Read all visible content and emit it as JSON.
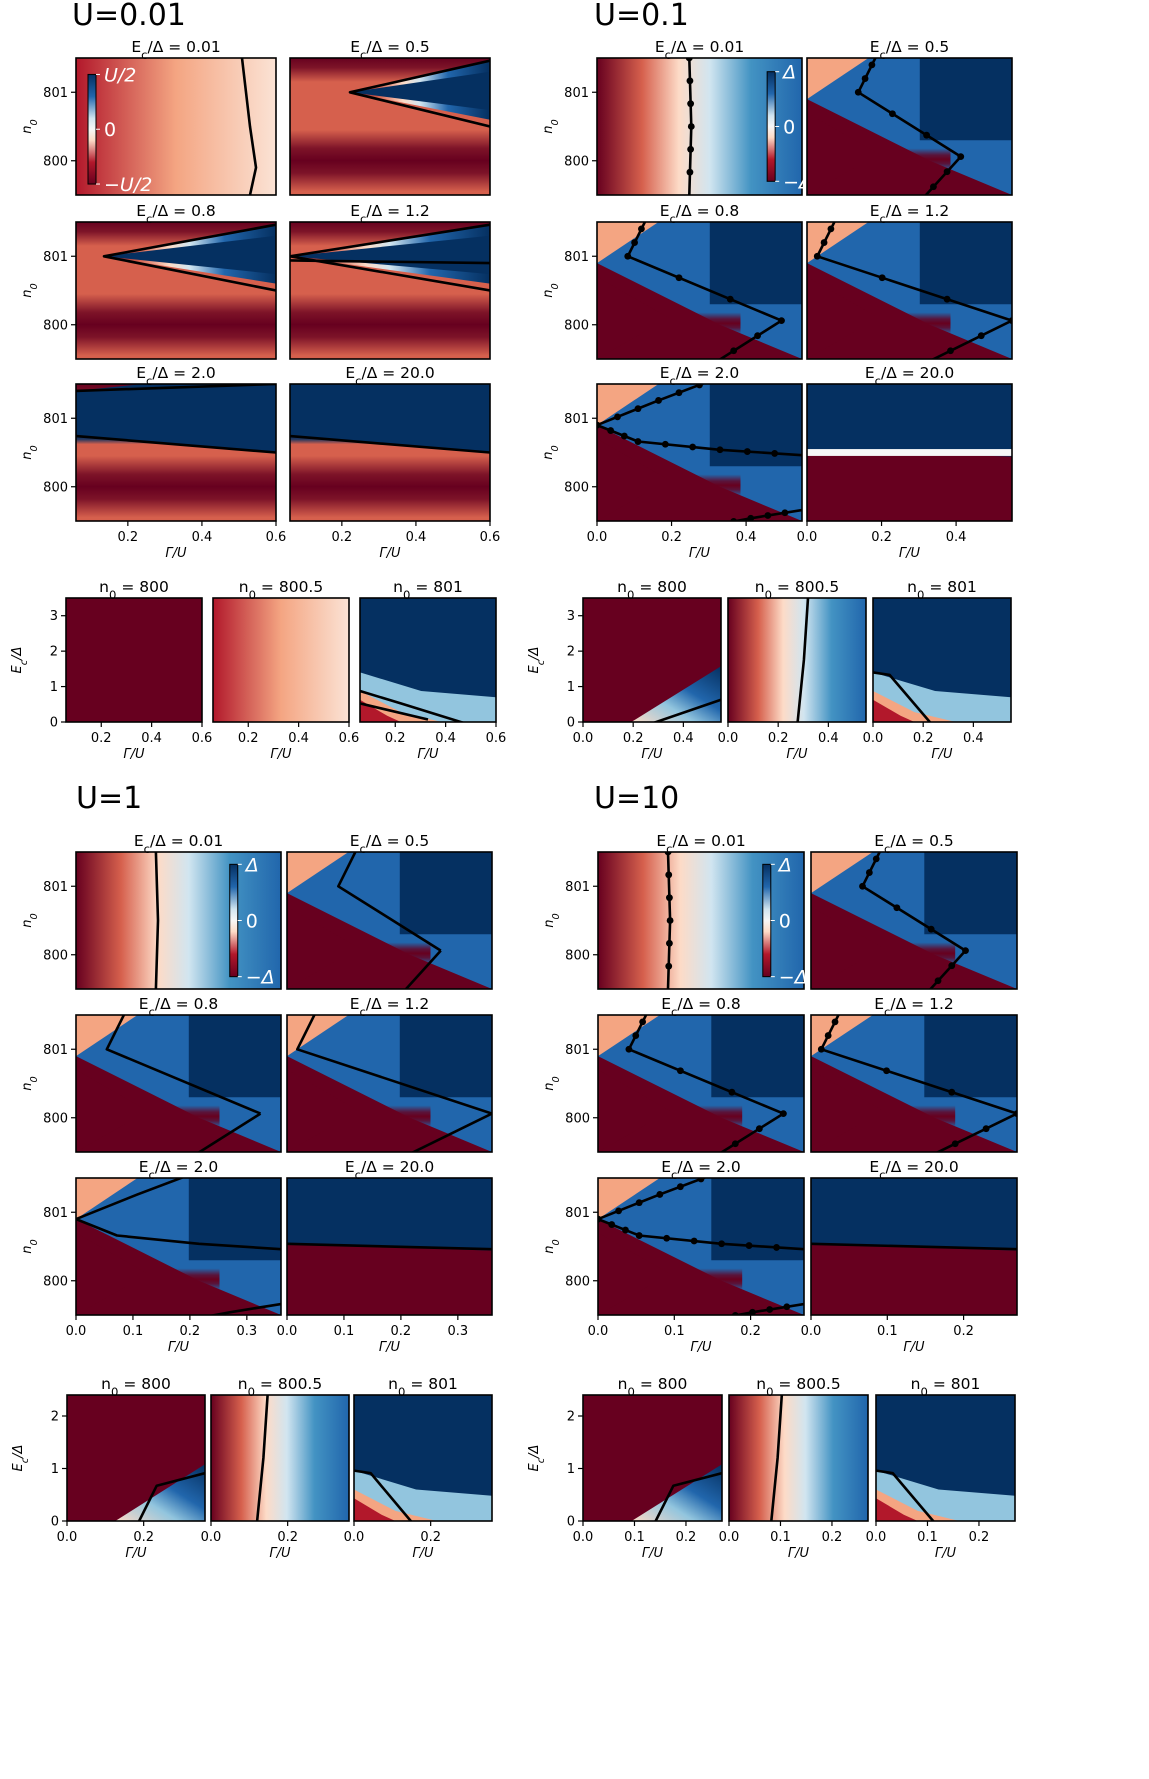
{
  "figure_titles": [
    "U=0.01",
    "U=0.1",
    "U=1",
    "U=10"
  ],
  "colormap": {
    "name": "RdBu",
    "low": "#67001f",
    "mid": "#f7f7f7",
    "high": "#053061"
  },
  "chart_data": [
    {
      "type": "heatmap",
      "title": "U=0.01",
      "colorbar": {
        "top": "U/2",
        "mid": "0",
        "bottom": "−U/2"
      },
      "n0_grid": {
        "ylabel": "n_0",
        "xlabel": "Γ/U",
        "ylim": [
          799.5,
          801.5
        ],
        "yticks": [
          800,
          801
        ],
        "xlim": [
          0.06,
          0.6
        ],
        "xticks": [
          "0.2",
          "0.4",
          "0.6"
        ],
        "panels": [
          {
            "title": "Ec/Δ = 0.01",
            "ec": 0.01,
            "markers": false
          },
          {
            "title": "Ec/Δ = 0.5",
            "ec": 0.5,
            "markers": false
          },
          {
            "title": "Ec/Δ = 0.8",
            "ec": 0.8,
            "markers": false
          },
          {
            "title": "Ec/Δ = 1.2",
            "ec": 1.2,
            "markers": false
          },
          {
            "title": "Ec/Δ = 2.0",
            "ec": 2.0,
            "markers": false
          },
          {
            "title": "Ec/Δ = 20.0",
            "ec": 20.0,
            "markers": false
          }
        ]
      },
      "ec_row": {
        "ylabel": "E_c/Δ",
        "xlabel": "Γ/U",
        "ylim": [
          0,
          3.5
        ],
        "yticks": [
          "0",
          "1",
          "2",
          "3"
        ],
        "xlim": [
          0.06,
          0.6
        ],
        "xticks": [
          "0.2",
          "0.4",
          "0.6"
        ],
        "panels": [
          {
            "title": "n_0 = 800",
            "n0": 800
          },
          {
            "title": "n_0 = 800.5",
            "n0": 800.5
          },
          {
            "title": "n_0 = 801",
            "n0": 801
          }
        ]
      }
    },
    {
      "type": "heatmap",
      "title": "U=0.1",
      "colorbar": {
        "top": "Δ",
        "mid": "0",
        "bottom": "−Δ"
      },
      "n0_grid": {
        "ylabel": "n_0",
        "xlabel": "Γ/U",
        "ylim": [
          799.5,
          801.5
        ],
        "yticks": [
          800,
          801
        ],
        "xlim": [
          0.0,
          0.55
        ],
        "xticks": [
          "0.0",
          "0.2",
          "0.4"
        ],
        "panels": [
          {
            "title": "Ec/Δ = 0.01",
            "ec": 0.01,
            "markers": true
          },
          {
            "title": "Ec/Δ = 0.5",
            "ec": 0.5,
            "markers": true
          },
          {
            "title": "Ec/Δ = 0.8",
            "ec": 0.8,
            "markers": true
          },
          {
            "title": "Ec/Δ = 1.2",
            "ec": 1.2,
            "markers": true
          },
          {
            "title": "Ec/Δ = 2.0",
            "ec": 2.0,
            "markers": true
          },
          {
            "title": "Ec/Δ = 20.0",
            "ec": 20.0,
            "markers": false
          }
        ]
      },
      "ec_row": {
        "ylabel": "E_c/Δ",
        "xlabel": "Γ/U",
        "ylim": [
          0,
          3.5
        ],
        "yticks": [
          "0",
          "1",
          "2",
          "3"
        ],
        "xlim": [
          0.0,
          0.55
        ],
        "xticks": [
          "0.0",
          "0.2",
          "0.4"
        ],
        "panels": [
          {
            "title": "n_0 = 800",
            "n0": 800
          },
          {
            "title": "n_0 = 800.5",
            "n0": 800.5
          },
          {
            "title": "n_0 = 801",
            "n0": 801
          }
        ]
      }
    },
    {
      "type": "heatmap",
      "title": "U=1",
      "colorbar": {
        "top": "Δ",
        "mid": "0",
        "bottom": "−Δ"
      },
      "n0_grid": {
        "ylabel": "n_0",
        "xlabel": "Γ/U",
        "ylim": [
          799.5,
          801.5
        ],
        "yticks": [
          800,
          801
        ],
        "xlim": [
          0.0,
          0.36
        ],
        "xticks": [
          "0.0",
          "0.1",
          "0.2",
          "0.3"
        ],
        "panels": [
          {
            "title": "Ec/Δ = 0.01",
            "ec": 0.01,
            "markers": false
          },
          {
            "title": "Ec/Δ = 0.5",
            "ec": 0.5,
            "markers": false
          },
          {
            "title": "Ec/Δ = 0.8",
            "ec": 0.8,
            "markers": false
          },
          {
            "title": "Ec/Δ = 1.2",
            "ec": 1.2,
            "markers": false
          },
          {
            "title": "Ec/Δ = 2.0",
            "ec": 2.0,
            "markers": false
          },
          {
            "title": "Ec/Δ = 20.0",
            "ec": 20.0,
            "markers": false
          }
        ]
      },
      "ec_row": {
        "ylabel": "E_c/Δ",
        "xlabel": "Γ/U",
        "ylim": [
          0,
          2.4
        ],
        "yticks": [
          "0",
          "1",
          "2"
        ],
        "xlim": [
          0.0,
          0.36
        ],
        "xticks": [
          "0.0",
          "0.2"
        ],
        "panels": [
          {
            "title": "n_0 = 800",
            "n0": 800
          },
          {
            "title": "n_0 = 800.5",
            "n0": 800.5
          },
          {
            "title": "n_0 = 801",
            "n0": 801
          }
        ]
      }
    },
    {
      "type": "heatmap",
      "title": "U=10",
      "colorbar": {
        "top": "Δ",
        "mid": "0",
        "bottom": "−Δ"
      },
      "n0_grid": {
        "ylabel": "n_0",
        "xlabel": "Γ/U",
        "ylim": [
          799.5,
          801.5
        ],
        "yticks": [
          800,
          801
        ],
        "xlim": [
          0.0,
          0.27
        ],
        "xticks": [
          "0.0",
          "0.1",
          "0.2"
        ],
        "panels": [
          {
            "title": "Ec/Δ = 0.01",
            "ec": 0.01,
            "markers": true
          },
          {
            "title": "Ec/Δ = 0.5",
            "ec": 0.5,
            "markers": true
          },
          {
            "title": "Ec/Δ = 0.8",
            "ec": 0.8,
            "markers": true
          },
          {
            "title": "Ec/Δ = 1.2",
            "ec": 1.2,
            "markers": true
          },
          {
            "title": "Ec/Δ = 2.0",
            "ec": 2.0,
            "markers": true
          },
          {
            "title": "Ec/Δ = 20.0",
            "ec": 20.0,
            "markers": false
          }
        ]
      },
      "ec_row": {
        "ylabel": "E_c/Δ",
        "xlabel": "Γ/U",
        "ylim": [
          0,
          2.4
        ],
        "yticks": [
          "0",
          "1",
          "2"
        ],
        "xlim": [
          0.0,
          0.27
        ],
        "xticks": [
          "0.0",
          "0.1",
          "0.2"
        ],
        "panels": [
          {
            "title": "n_0 = 800",
            "n0": 800
          },
          {
            "title": "n_0 = 800.5",
            "n0": 800.5
          },
          {
            "title": "n_0 = 801",
            "n0": 801
          }
        ]
      }
    }
  ]
}
